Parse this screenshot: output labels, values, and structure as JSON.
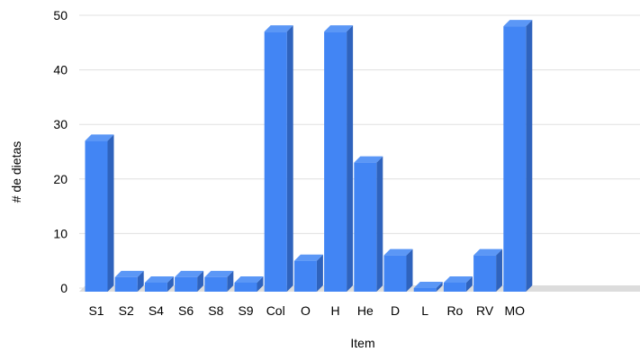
{
  "chart_data": {
    "type": "bar",
    "xlabel": "Item",
    "ylabel": "# de dietas",
    "ylim": [
      0,
      50
    ],
    "yticks": [
      0,
      10,
      20,
      30,
      40,
      50
    ],
    "grid": true,
    "legend": "none",
    "categories": [
      "S1",
      "S2",
      "S4",
      "S6",
      "S8",
      "S9",
      "Col",
      "O",
      "H",
      "He",
      "D",
      "L",
      "Ro",
      "RV",
      "MO"
    ],
    "values": [
      27,
      2,
      1,
      2,
      2,
      1,
      47,
      5,
      47,
      23,
      6,
      0,
      1,
      6,
      48
    ],
    "colors": {
      "bar_front": "#4285f4",
      "bar_top": "#5b97f6",
      "bar_side": "#2f63bd",
      "grid": "#e0e0e0",
      "floor": "#dcdcdc"
    }
  }
}
